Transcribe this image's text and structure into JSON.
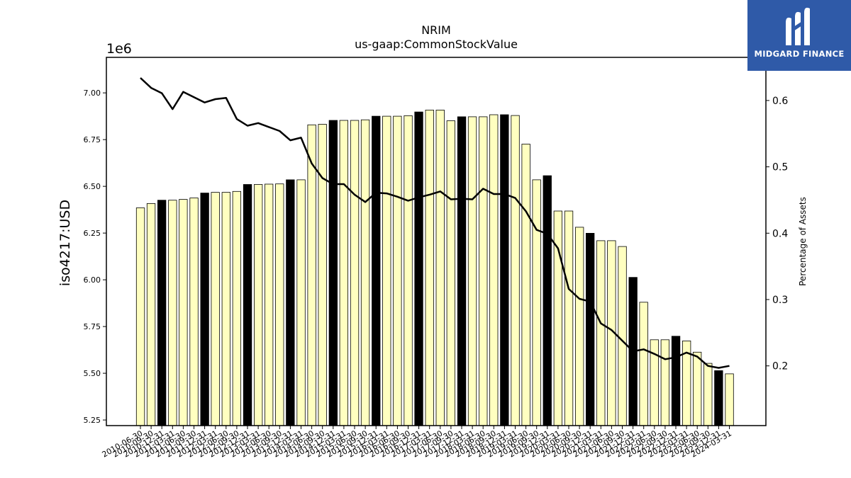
{
  "chart_data": {
    "type": "bar",
    "title": "NRIM",
    "subtitle": "us-gaap:CommonStockValue",
    "ylabel": "iso4217:USD",
    "ylabel_right": "Percentage of Assets",
    "y_multiplier": "1e6",
    "ylim": [
      5220000,
      7190000
    ],
    "ylim_right": [
      0.11,
      0.665
    ],
    "yticks": [
      "5.25",
      "5.50",
      "5.75",
      "6.00",
      "6.25",
      "6.50",
      "6.75",
      "7.00"
    ],
    "yticks_right": [
      "0.2",
      "0.3",
      "0.4",
      "0.5",
      "0.6"
    ],
    "tick_labels": [
      "2010-06-30",
      "2010-09-30",
      "2010-12-31",
      "2011-03-31",
      "2011-06-30",
      "2011-09-30",
      "2011-12-31",
      "2012-03-31",
      "2012-06-30",
      "2012-09-30",
      "2012-12-31",
      "2013-03-31",
      "2013-06-30",
      "2013-09-30",
      "2013-12-31",
      "2014-03-31",
      "2014-06-30",
      "2014-09-30",
      "2014-12-31",
      "2015-03-31",
      "2015-06-30",
      "2015-09-30",
      "2015-12-31",
      "2016-03-31",
      "2016-06-30",
      "2016-09-30",
      "2016-12-31",
      "2017-03-31",
      "2017-06-30",
      "2017-09-30",
      "2017-12-31",
      "2018-03-31",
      "2018-06-30",
      "2018-09-30",
      "2018-12-31",
      "2019-03-31",
      "2019-06-30",
      "2019-09-30",
      "2019-12-31",
      "2020-03-31",
      "2020-06-30",
      "2020-09-30",
      "2020-12-31",
      "2021-03-31",
      "2021-06-30",
      "2021-09-30",
      "2021-12-31",
      "2022-03-31",
      "2022-06-30",
      "2022-09-30",
      "2022-12-31",
      "2023-03-31",
      "2023-06-30",
      "2023-09-30",
      "2023-12-31",
      "2024-03-31"
    ],
    "categories": [
      "2010-06-30",
      "2010-09-30",
      "2010-12-31",
      "2011-03-31",
      "2011-06-30",
      "2011-09-30",
      "2011-12-31",
      "2012-03-31",
      "2012-06-30",
      "2012-09-30",
      "2012-12-31",
      "2013-03-31",
      "2013-06-30",
      "2013-09-30",
      "2013-12-31",
      "2014-03-31",
      "2014-06-30",
      "2014-09-30",
      "2014-12-31",
      "2015-03-31",
      "2015-06-30",
      "2015-09-30",
      "2015-12-31",
      "2016-03-31",
      "2016-06-30",
      "2016-09-30",
      "2016-12-31",
      "2017-03-31",
      "2017-06-30",
      "2017-09-30",
      "2017-12-31",
      "2018-03-31",
      "2018-06-30",
      "2018-09-30",
      "2018-12-31",
      "2019-03-31",
      "2019-06-30",
      "2019-09-30",
      "2019-12-31",
      "2020-03-31",
      "2020-06-30",
      "2020-09-30",
      "2020-12-31",
      "2021-03-31",
      "2021-06-30",
      "2021-09-30",
      "2021-12-31",
      "2022-03-31",
      "2022-06-30",
      "2022-09-30",
      "2022-12-31",
      "2023-03-31",
      "2023-06-30",
      "2023-09-30",
      "2023-12-31",
      "2024-03-31"
    ],
    "series": [
      {
        "values": [
          6385000,
          6408000,
          6426000,
          6426000,
          6430000,
          6438000,
          6464000,
          6468000,
          6468000,
          6473000,
          6510000,
          6510000,
          6512000,
          6513000,
          6535000,
          6535000,
          6829000,
          6832000,
          6853000,
          6853000,
          6853000,
          6856000,
          6875000,
          6875000,
          6875000,
          6878000,
          6898000,
          6908000,
          6908000,
          6851000,
          6872000,
          6872000,
          6872000,
          6883000,
          6883000,
          6879000,
          6726000,
          6535000,
          6557000,
          6368000,
          6368000,
          6281000,
          6249000,
          6209000,
          6209000,
          6178000,
          6013000,
          5880000,
          5679000,
          5679000,
          5698000,
          5673000,
          5613000,
          5553000,
          5514000,
          5497000
        ],
        "bar_colors": [
          "#ffffc0",
          "#ffffc0",
          "#000000",
          "#ffffc0",
          "#ffffc0",
          "#ffffc0",
          "#000000",
          "#ffffc0",
          "#ffffc0",
          "#ffffc0",
          "#000000",
          "#ffffc0",
          "#ffffc0",
          "#ffffc0",
          "#000000",
          "#ffffc0",
          "#ffffc0",
          "#ffffc0",
          "#000000",
          "#ffffc0",
          "#ffffc0",
          "#ffffc0",
          "#000000",
          "#ffffc0",
          "#ffffc0",
          "#ffffc0",
          "#000000",
          "#ffffc0",
          "#ffffc0",
          "#ffffc0",
          "#000000",
          "#ffffc0",
          "#ffffc0",
          "#ffffc0",
          "#000000",
          "#ffffc0",
          "#ffffc0",
          "#ffffc0",
          "#000000",
          "#ffffc0",
          "#ffffc0",
          "#ffffc0",
          "#000000",
          "#ffffc0",
          "#ffffc0",
          "#ffffc0",
          "#000000",
          "#ffffc0",
          "#ffffc0",
          "#ffffc0",
          "#000000",
          "#ffffc0",
          "#ffffc0",
          "#ffffc0",
          "#000000",
          "#ffffc0"
        ]
      },
      {
        "axis": "right",
        "type": "line",
        "color": "#000000",
        "values": [
          0.634,
          0.619,
          0.611,
          0.587,
          0.613,
          0.605,
          0.597,
          0.602,
          0.604,
          0.572,
          0.562,
          0.566,
          0.56,
          0.554,
          0.54,
          0.544,
          0.505,
          0.483,
          0.474,
          0.474,
          0.458,
          0.447,
          0.461,
          0.46,
          0.455,
          0.449,
          0.454,
          0.458,
          0.463,
          0.451,
          0.452,
          0.451,
          0.467,
          0.459,
          0.459,
          0.453,
          0.433,
          0.405,
          0.399,
          0.377,
          0.316,
          0.301,
          0.297,
          0.264,
          0.254,
          0.238,
          0.222,
          0.225,
          0.218,
          0.21,
          0.213,
          0.22,
          0.214,
          0.2,
          0.197,
          0.2
        ]
      }
    ],
    "grid": false
  },
  "logo": {
    "text": "MIDGARD FINANCE"
  }
}
